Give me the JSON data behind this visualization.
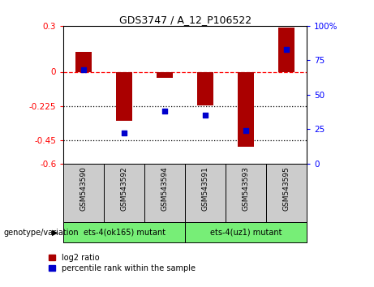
{
  "title": "GDS3747 / A_12_P106522",
  "categories": [
    "GSM543590",
    "GSM543592",
    "GSM543594",
    "GSM543591",
    "GSM543593",
    "GSM543595"
  ],
  "log2_ratio": [
    0.13,
    -0.32,
    -0.04,
    -0.22,
    -0.49,
    0.29
  ],
  "percentile_rank": [
    68,
    22,
    38,
    35,
    24,
    83
  ],
  "ylim_left": [
    -0.6,
    0.3
  ],
  "ylim_right": [
    0,
    100
  ],
  "yticks_left": [
    0.3,
    0,
    -0.225,
    -0.45,
    -0.6
  ],
  "ytick_labels_left": [
    "0.3",
    "0",
    "-0.225",
    "-0.45",
    "-0.6"
  ],
  "yticks_right": [
    100,
    75,
    50,
    25,
    0
  ],
  "ytick_labels_right": [
    "100%",
    "75",
    "50",
    "25",
    "0"
  ],
  "hline_y": 0,
  "dotted_lines": [
    -0.225,
    -0.45
  ],
  "bar_color": "#aa0000",
  "scatter_color": "#0000cc",
  "group1_label": "ets-4(ok165) mutant",
  "group2_label": "ets-4(uz1) mutant",
  "group1_color": "#77ee77",
  "group2_color": "#77ee77",
  "sample_box_color": "#cccccc",
  "legend_bar_label": "log2 ratio",
  "legend_scatter_label": "percentile rank within the sample",
  "genotype_label": "genotype/variation"
}
